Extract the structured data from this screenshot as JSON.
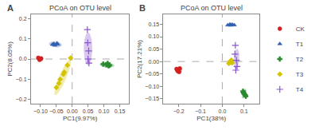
{
  "chart_data": [
    {
      "type": "scatter",
      "title": "PCoA on OTU level",
      "panel_label": "A",
      "xlabel": "PC1(9.97%)",
      "ylabel": "PC2(8.05%)",
      "xlim": [
        -0.13,
        0.18
      ],
      "ylim": [
        -0.22,
        0.22
      ],
      "xticks": [
        {
          "value": -0.1,
          "label": "−0.10"
        },
        {
          "value": -0.05,
          "label": "−0.05"
        },
        {
          "value": 0,
          "label": "0.00"
        },
        {
          "value": 0.05,
          "label": "0.05"
        },
        {
          "value": 0.1,
          "label": "0.10"
        },
        {
          "value": 0.15,
          "label": "0.15"
        }
      ],
      "yticks": [
        {
          "value": -0.2,
          "label": "−0.2"
        },
        {
          "value": -0.1,
          "label": "−0.1"
        },
        {
          "value": 0,
          "label": "0.0"
        },
        {
          "value": 0.1,
          "label": "0.1"
        },
        {
          "value": 0.2,
          "label": "0.2"
        }
      ],
      "grid": false,
      "legend": "right",
      "crosshair": {
        "x": 0,
        "y": 0
      },
      "series": [
        {
          "name": "CK",
          "color": "#d42020",
          "marker": "circle",
          "x": [
            -0.098,
            -0.103,
            -0.107,
            -0.1,
            -0.104
          ],
          "y": [
            0.003,
            -0.004,
            0.006,
            0.0,
            0.002
          ],
          "ellipse": {
            "center": [
              -0.1,
              0.0
            ],
            "width": 0.012,
            "height": 0.02,
            "angle": 10
          }
        },
        {
          "name": "T1",
          "color": "#3060b0",
          "marker": "triangle-up",
          "x": [
            -0.058,
            -0.048,
            -0.055,
            -0.062,
            -0.046
          ],
          "y": [
            0.075,
            0.078,
            0.068,
            0.072,
            0.073
          ],
          "ellipse": {
            "center": [
              -0.053,
              0.072
            ],
            "width": 0.04,
            "height": 0.025,
            "angle": -15
          }
        },
        {
          "name": "T2",
          "color": "#2a8a30",
          "marker": "cross",
          "x": [
            0.098,
            0.108,
            0.115,
            0.112,
            0.118
          ],
          "y": [
            -0.025,
            -0.028,
            -0.033,
            -0.022,
            -0.03
          ],
          "ellipse": {
            "center": [
              0.11,
              -0.03
            ],
            "width": 0.045,
            "height": 0.022,
            "angle": -10
          }
        },
        {
          "name": "T3",
          "color": "#d4c400",
          "marker": "diamond",
          "x": [
            -0.005,
            -0.015,
            -0.025,
            -0.038,
            -0.05,
            -0.042,
            -0.028
          ],
          "y": [
            0.005,
            -0.03,
            -0.065,
            -0.1,
            -0.14,
            -0.12,
            -0.075
          ],
          "ellipse": {
            "center": [
              -0.03,
              -0.09
            ],
            "width": 0.022,
            "height": 0.18,
            "angle": -15
          }
        },
        {
          "name": "T4",
          "color": "#8855cc",
          "marker": "cross-thin",
          "x": [
            0.048,
            0.052,
            0.05,
            0.053,
            0.049
          ],
          "y": [
            0.145,
            0.04,
            0.0,
            -0.02,
            0.08
          ],
          "ellipse": {
            "center": [
              0.05,
              0.05
            ],
            "width": 0.025,
            "height": 0.16,
            "angle": 0
          }
        }
      ]
    },
    {
      "type": "scatter",
      "title": "PCoA on OTU level",
      "panel_label": "B",
      "xlabel": "PC1(38%)",
      "ylabel": "PC2(17.21%)",
      "xlim": [
        -0.27,
        0.17
      ],
      "ylim": [
        -0.17,
        0.19
      ],
      "xticks": [
        {
          "value": -0.2,
          "label": "−0.2"
        },
        {
          "value": -0.1,
          "label": "−0.1"
        },
        {
          "value": 0,
          "label": "0.0"
        },
        {
          "value": 0.1,
          "label": "0.1"
        }
      ],
      "yticks": [
        {
          "value": -0.15,
          "label": "−0.15"
        },
        {
          "value": -0.1,
          "label": "−0.10"
        },
        {
          "value": -0.05,
          "label": "−0.05"
        },
        {
          "value": 0,
          "label": "0.00"
        },
        {
          "value": 0.05,
          "label": "0.05"
        },
        {
          "value": 0.1,
          "label": "0.10"
        },
        {
          "value": 0.15,
          "label": "0.15"
        }
      ],
      "grid": false,
      "legend": "right",
      "crosshair": {
        "x": 0,
        "y": 0
      },
      "series": [
        {
          "name": "CK",
          "color": "#d42020",
          "marker": "circle",
          "x": [
            -0.195,
            -0.205,
            -0.21,
            -0.198,
            -0.2
          ],
          "y": [
            -0.028,
            -0.038,
            -0.03,
            -0.042,
            -0.033
          ],
          "ellipse": {
            "center": [
              -0.2,
              -0.035
            ],
            "width": 0.03,
            "height": 0.025,
            "angle": 20
          }
        },
        {
          "name": "T1",
          "color": "#3060b0",
          "marker": "triangle-up",
          "x": [
            0.025,
            0.035,
            0.045,
            0.055,
            0.038
          ],
          "y": [
            0.147,
            0.15,
            0.149,
            0.147,
            0.146
          ],
          "ellipse": {
            "center": [
              0.04,
              0.148
            ],
            "width": 0.04,
            "height": 0.012,
            "angle": 5
          }
        },
        {
          "name": "T2",
          "color": "#2a8a30",
          "marker": "cross",
          "x": [
            0.095,
            0.1,
            0.105,
            0.108,
            0.097
          ],
          "y": [
            -0.12,
            -0.13,
            -0.135,
            -0.14,
            -0.125
          ],
          "ellipse": {
            "center": [
              0.1,
              -0.13
            ],
            "width": 0.015,
            "height": 0.04,
            "angle": -20
          }
        },
        {
          "name": "T3",
          "color": "#d4c400",
          "marker": "diamond",
          "x": [
            0.03,
            0.038,
            0.045,
            0.042,
            0.035
          ],
          "y": [
            -0.008,
            0.002,
            -0.005,
            0.005,
            -0.002
          ],
          "ellipse": {
            "center": [
              0.04,
              -0.005
            ],
            "width": 0.025,
            "height": 0.02,
            "angle": 0
          }
        },
        {
          "name": "T4",
          "color": "#8855cc",
          "marker": "cross-thin",
          "x": [
            0.06,
            0.065,
            0.068,
            0.062,
            0.058
          ],
          "y": [
            0.065,
            0.005,
            -0.02,
            -0.035,
            0.03
          ],
          "ellipse": {
            "center": [
              0.065,
              0.01
            ],
            "width": 0.022,
            "height": 0.08,
            "angle": -5
          }
        }
      ]
    }
  ]
}
